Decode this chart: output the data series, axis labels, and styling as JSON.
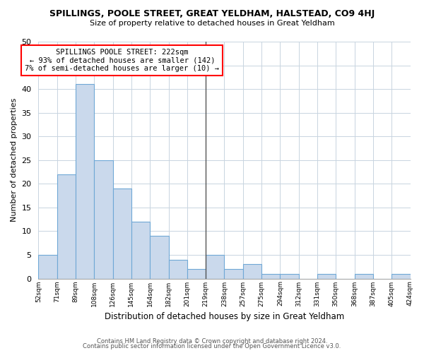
{
  "title": "SPILLINGS, POOLE STREET, GREAT YELDHAM, HALSTEAD, CO9 4HJ",
  "subtitle": "Size of property relative to detached houses in Great Yeldham",
  "xlabel": "Distribution of detached houses by size in Great Yeldham",
  "ylabel": "Number of detached properties",
  "bar_values": [
    5,
    22,
    41,
    25,
    19,
    12,
    9,
    4,
    2,
    5,
    2,
    3,
    1,
    1,
    0,
    1,
    0,
    1,
    0,
    1
  ],
  "bin_labels": [
    "52sqm",
    "71sqm",
    "89sqm",
    "108sqm",
    "126sqm",
    "145sqm",
    "164sqm",
    "182sqm",
    "201sqm",
    "219sqm",
    "238sqm",
    "257sqm",
    "275sqm",
    "294sqm",
    "312sqm",
    "331sqm",
    "350sqm",
    "368sqm",
    "387sqm",
    "405sqm",
    "424sqm"
  ],
  "bar_color": "#cad9ec",
  "bar_edge_color": "#6fa8d6",
  "annotation_text_line1": "SPILLINGS POOLE STREET: 222sqm",
  "annotation_text_line2": "← 93% of detached houses are smaller (142)",
  "annotation_text_line3": "7% of semi-detached houses are larger (10) →",
  "vline_bar_index": 9,
  "vline_color": "#555555",
  "ylim": [
    0,
    50
  ],
  "yticks": [
    0,
    5,
    10,
    15,
    20,
    25,
    30,
    35,
    40,
    45,
    50
  ],
  "footer_line1": "Contains HM Land Registry data © Crown copyright and database right 2024.",
  "footer_line2": "Contains public sector information licensed under the Open Government Licence v3.0.",
  "background_color": "#ffffff",
  "grid_color": "#c8d4e0"
}
